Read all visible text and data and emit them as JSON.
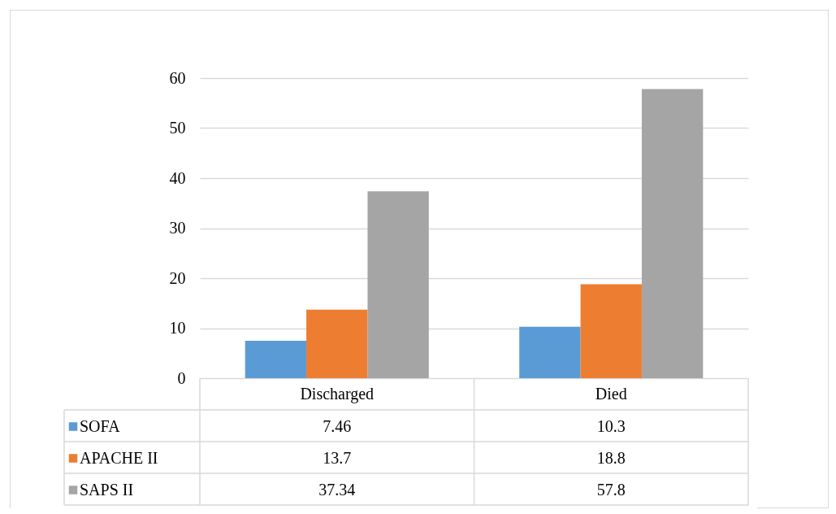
{
  "chart_data": {
    "type": "bar",
    "categories": [
      "Discharged",
      "Died"
    ],
    "series": [
      {
        "name": "SOFA",
        "color": "#5b9bd5",
        "values": [
          7.46,
          10.3
        ]
      },
      {
        "name": "APACHE II",
        "color": "#ed7d31",
        "values": [
          13.7,
          18.8
        ]
      },
      {
        "name": "SAPS II",
        "color": "#a5a5a5",
        "values": [
          37.34,
          57.8
        ]
      }
    ],
    "ylim": [
      0,
      60
    ],
    "yticks": [
      0,
      10,
      20,
      30,
      40,
      50,
      60
    ],
    "grid": "y",
    "legend": "bottom",
    "data_labels": true
  }
}
